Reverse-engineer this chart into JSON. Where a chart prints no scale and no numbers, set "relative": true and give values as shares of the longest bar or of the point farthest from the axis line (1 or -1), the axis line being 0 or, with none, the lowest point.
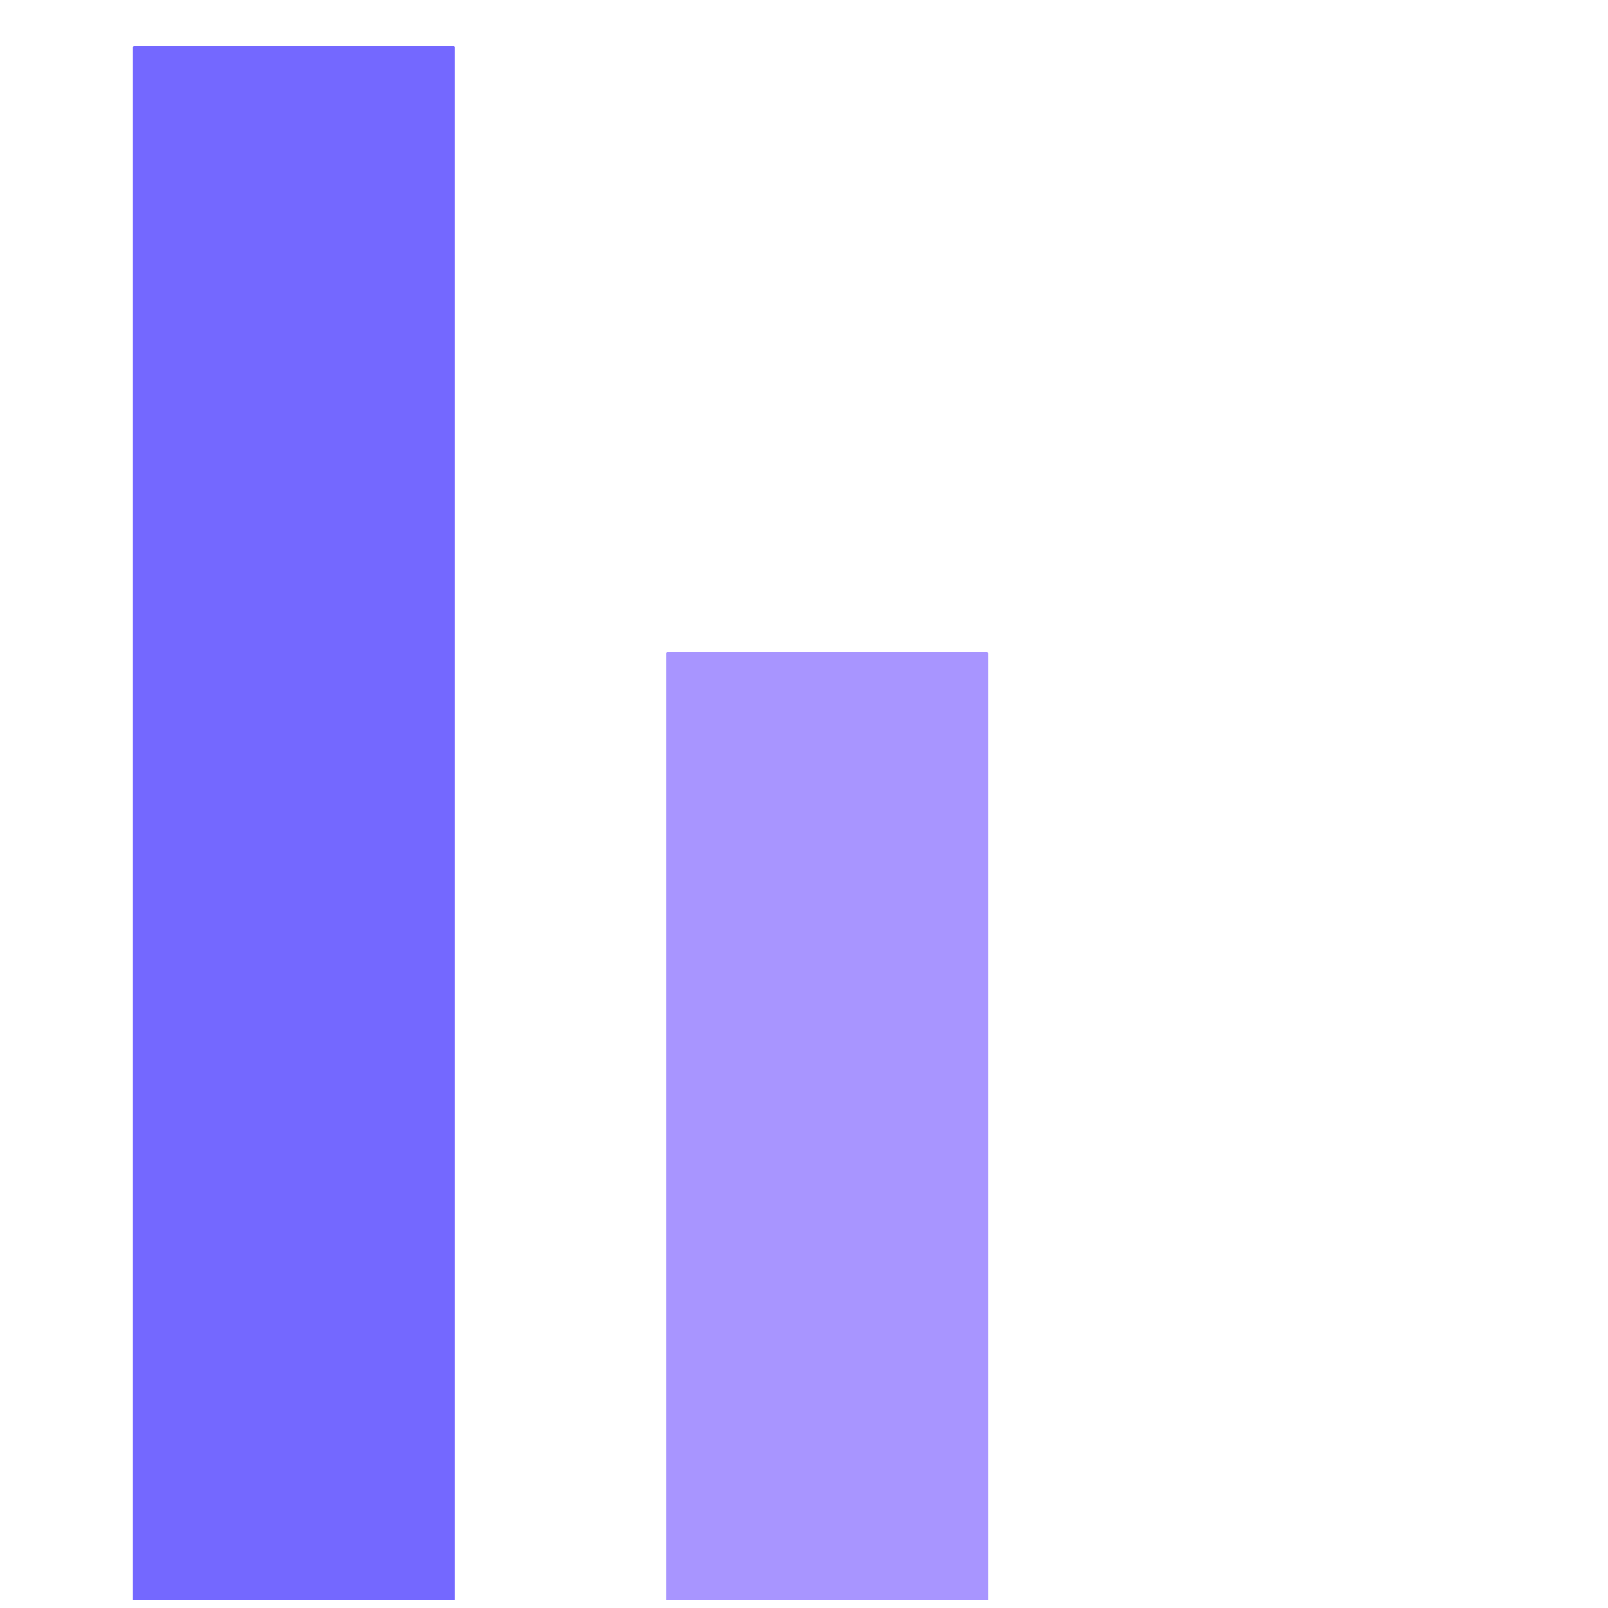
{
  "chart_data": {
    "type": "bar",
    "relative": true,
    "categories": [
      null,
      null
    ],
    "values": [
      1,
      0.61
    ],
    "colors": [
      "#7468ff",
      "#a895ff"
    ]
  }
}
